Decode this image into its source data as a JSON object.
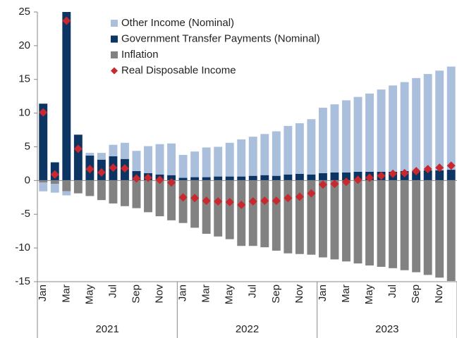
{
  "chart_data": {
    "type": "bar",
    "categories": [
      "Jan",
      null,
      "Mar",
      null,
      "May",
      null,
      "Jul",
      null,
      "Sep",
      null,
      "Nov",
      null,
      "Jan",
      null,
      "Mar",
      null,
      "May",
      null,
      "Jul",
      null,
      "Sep",
      null,
      "Nov",
      null,
      "Jan",
      null,
      "Mar",
      null,
      "May",
      null,
      "Jul",
      null,
      "Sep",
      null,
      "Nov",
      null
    ],
    "years": [
      "2021",
      "2022",
      "2023"
    ],
    "series": [
      {
        "name": "Other Income (Nominal)",
        "color": "#a9bfdc",
        "kind": "bar",
        "values": [
          -1.3,
          -1.3,
          -0.6,
          0,
          0.4,
          1.0,
          1.7,
          2.4,
          3.0,
          4.0,
          4.5,
          4.7,
          3.4,
          3.8,
          4.4,
          4.4,
          5.0,
          5.5,
          5.8,
          6.1,
          6.6,
          7.2,
          7.5,
          8.2,
          9.7,
          10.1,
          10.7,
          11.1,
          11.6,
          12.2,
          12.8,
          13.2,
          13.8,
          14.3,
          14.8,
          15.3
        ]
      },
      {
        "name": "Government Transfer Payments (Nominal)",
        "color": "#0c3563",
        "kind": "bar",
        "values": [
          11.4,
          2.7,
          25,
          6.8,
          3.7,
          3.1,
          3.6,
          3.2,
          1.4,
          1.1,
          0.9,
          0.8,
          0.4,
          0.5,
          0.5,
          0.6,
          0.6,
          0.6,
          0.7,
          0.8,
          0.7,
          0.9,
          1.0,
          0.9,
          1.1,
          1.2,
          1.2,
          1.3,
          1.3,
          1.3,
          1.3,
          1.4,
          1.4,
          1.5,
          1.5,
          1.6
        ]
      },
      {
        "name": "Inflation",
        "color": "#828282",
        "kind": "bar",
        "values": [
          -0.3,
          -0.5,
          -1.6,
          -1.9,
          -2.3,
          -2.9,
          -3.4,
          -3.8,
          -4.1,
          -4.7,
          -5.3,
          -5.9,
          -6.3,
          -7.0,
          -7.9,
          -8.3,
          -8.7,
          -9.7,
          -9.7,
          -9.9,
          -10.4,
          -10.8,
          -10.9,
          -11.0,
          -11.4,
          -11.7,
          -12.0,
          -12.3,
          -12.6,
          -12.8,
          -13.0,
          -13.3,
          -13.6,
          -14.0,
          -14.4,
          -14.9
        ]
      },
      {
        "name": "Real Disposable Income",
        "color": "#c8282e",
        "kind": "marker",
        "values": [
          10.1,
          0.9,
          23.7,
          4.7,
          1.7,
          1.2,
          1.9,
          1.8,
          0.3,
          0.4,
          0.1,
          -0.3,
          -2.5,
          -2.6,
          -3.0,
          -3.1,
          -3.2,
          -3.6,
          -3.1,
          -3.0,
          -3.0,
          -2.6,
          -2.4,
          -1.9,
          -0.6,
          -0.5,
          -0.2,
          0.1,
          0.4,
          0.7,
          1.0,
          1.1,
          1.4,
          1.7,
          1.9,
          2.2
        ]
      }
    ],
    "ylim": [
      -15,
      25
    ],
    "yticks": [
      -15,
      -10,
      -5,
      0,
      5,
      10,
      15,
      20,
      25
    ],
    "grid": false,
    "legend": "top"
  }
}
